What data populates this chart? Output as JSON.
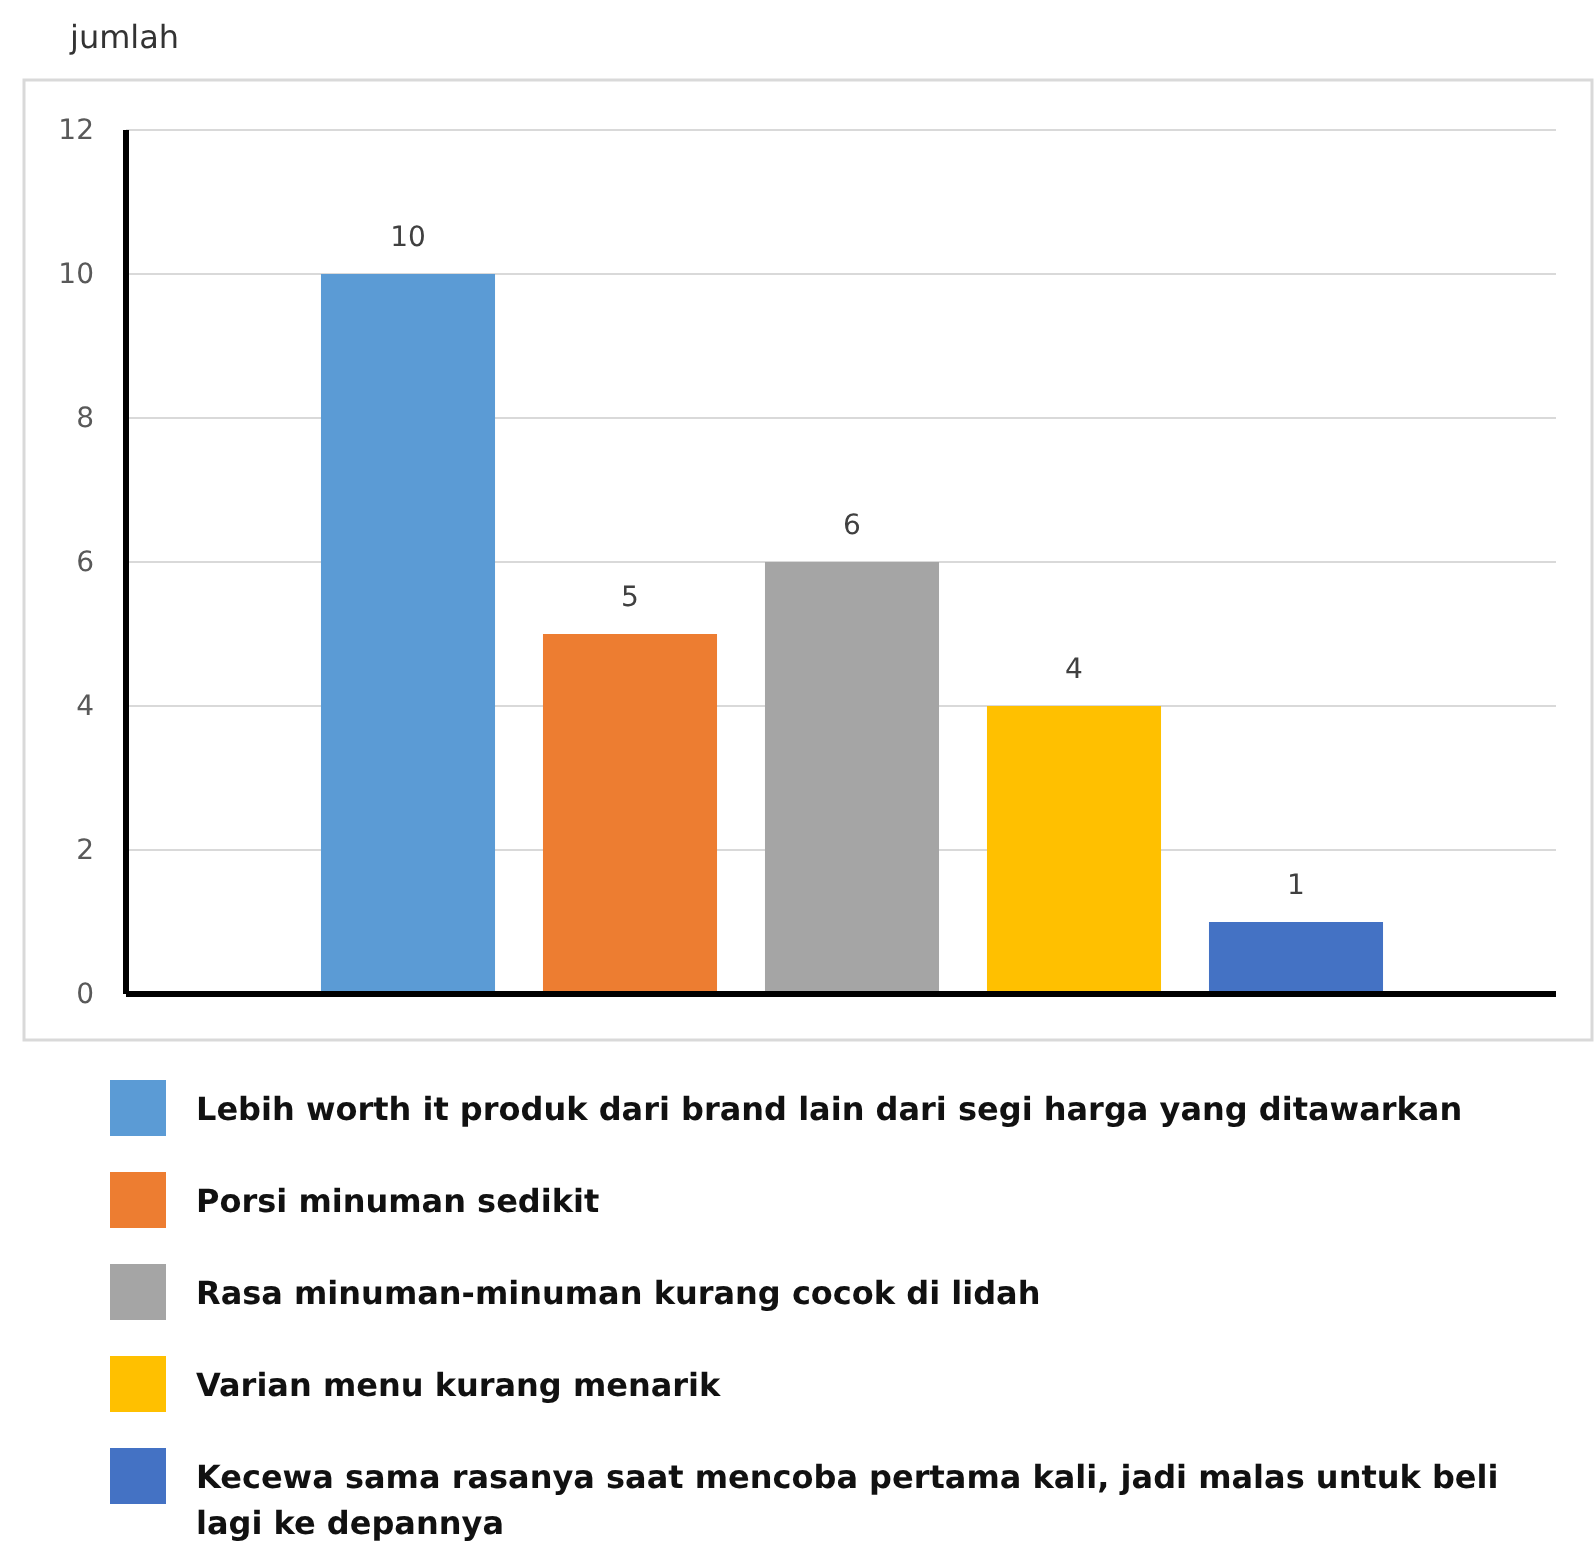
{
  "chart_data": {
    "type": "bar",
    "ylabel": "jumlah",
    "categories": [
      null,
      null,
      null,
      null,
      null
    ],
    "series": [
      {
        "name": "Lebih worth it produk dari brand lain dari segi harga yang ditawarkan",
        "color": "#5b9bd5",
        "values": [
          10,
          null,
          null,
          null,
          null
        ]
      },
      {
        "name": "Porsi minuman sedikit",
        "color": "#ed7d31",
        "values": [
          null,
          5,
          null,
          null,
          null
        ]
      },
      {
        "name": "Rasa minuman-minuman kurang cocok di lidah",
        "color": "#a5a5a5",
        "values": [
          null,
          null,
          6,
          null,
          null
        ]
      },
      {
        "name": "Varian menu kurang menarik",
        "color": "#ffc000",
        "values": [
          null,
          null,
          null,
          4,
          null
        ]
      },
      {
        "name": "Kecewa sama rasanya saat mencoba pertama kali, jadi malas untuk beli lagi ke depannya",
        "color": "#4472c4",
        "values": [
          null,
          null,
          null,
          null,
          1
        ]
      }
    ],
    "stacked": true,
    "ylim": [
      0,
      12
    ],
    "yticks": [
      0,
      2,
      4,
      6,
      8,
      10,
      12
    ],
    "grid": "y",
    "legend": "bottom",
    "data_labels": true,
    "tick_labels": "y"
  }
}
